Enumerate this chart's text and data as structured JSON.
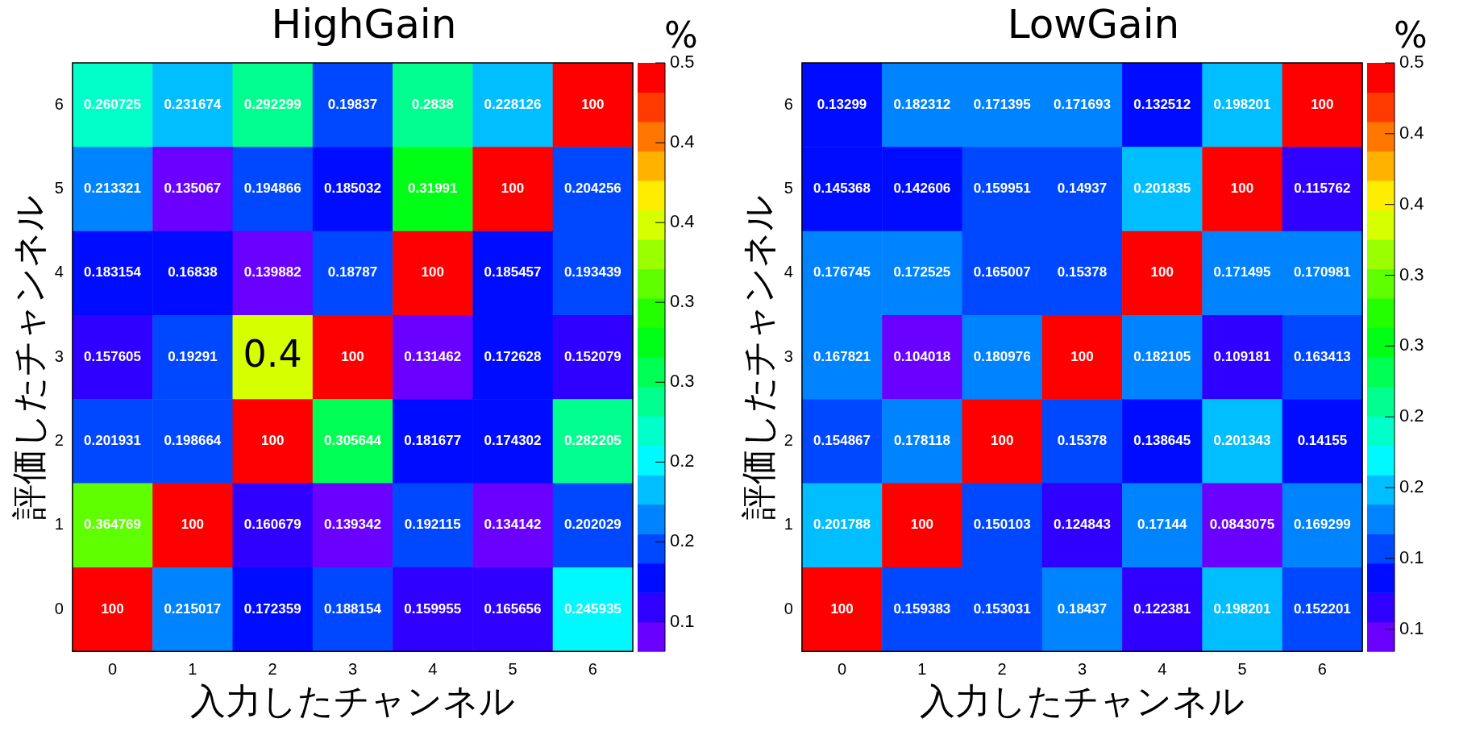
{
  "chart_data": [
    {
      "type": "heatmap",
      "title": "HighGain",
      "xlabel": "入力したチャンネル",
      "ylabel": "評価したチャンネル",
      "clabel": "%",
      "categories": [
        "0",
        "1",
        "2",
        "3",
        "4",
        "5",
        "6"
      ],
      "y_categories": [
        "6",
        "5",
        "4",
        "3",
        "2",
        "1",
        "0"
      ],
      "cells": [
        [
          0.260725,
          0.231674,
          0.292299,
          0.19837,
          0.2838,
          0.228126,
          100
        ],
        [
          0.213321,
          0.135067,
          0.194866,
          0.185032,
          0.31991,
          100,
          0.204256
        ],
        [
          0.183154,
          0.16838,
          0.139882,
          0.18787,
          100,
          0.185457,
          0.193439
        ],
        [
          0.157605,
          0.19291,
          0.39,
          100,
          0.131462,
          0.172628,
          0.152079
        ],
        [
          0.201931,
          0.198664,
          100,
          0.305644,
          0.181677,
          0.174302,
          0.282205
        ],
        [
          0.364769,
          100,
          0.160679,
          0.139342,
          0.192115,
          0.134142,
          0.202029
        ],
        [
          100,
          0.215017,
          0.172359,
          0.188154,
          0.159955,
          0.165656,
          0.245935
        ]
      ],
      "cell_labels": [
        [
          "0.260725",
          "0.231674",
          "0.292299",
          "0.19837",
          "0.2838",
          "0.228126",
          "100"
        ],
        [
          "0.213321",
          "0.135067",
          "0.194866",
          "0.185032",
          "0.31991",
          "100",
          "0.204256"
        ],
        [
          "0.183154",
          "0.16838",
          "0.139882",
          "0.18787",
          "100",
          "0.185457",
          "0.193439"
        ],
        [
          "0.157605",
          "0.19291",
          null,
          "100",
          "0.131462",
          "0.172628",
          "0.152079"
        ],
        [
          "0.201931",
          "0.198664",
          "100",
          "0.305644",
          "0.181677",
          "0.174302",
          "0.282205"
        ],
        [
          "0.364769",
          "100",
          "0.160679",
          "0.139342",
          "0.192115",
          "0.134142",
          "0.202029"
        ],
        [
          "100",
          "0.215017",
          "0.172359",
          "0.188154",
          "0.159955",
          "0.165656",
          "0.245935"
        ]
      ],
      "annotations": [
        "0.4"
      ],
      "clim": [
        0.131462,
        0.5
      ],
      "cticks": [
        0.5,
        {
          "value": 0.45,
          "label": "0.4"
        },
        0.4,
        {
          "value": 0.35,
          "label": "0.3"
        },
        0.3,
        {
          "value": 0.25,
          "label": "0.2"
        },
        0.2,
        {
          "value": 0.15,
          "label": "0.1"
        }
      ]
    },
    {
      "type": "heatmap",
      "title": "LowGain",
      "xlabel": "入力したチャンネル",
      "ylabel": "評価したチャンネル",
      "clabel": "%",
      "categories": [
        "0",
        "1",
        "2",
        "3",
        "4",
        "5",
        "6"
      ],
      "y_categories": [
        "6",
        "5",
        "4",
        "3",
        "2",
        "1",
        "0"
      ],
      "cells": [
        [
          0.13299,
          0.182312,
          0.171395,
          0.171693,
          0.132512,
          0.198201,
          100
        ],
        [
          0.145368,
          0.142606,
          0.159951,
          0.14937,
          0.201835,
          100,
          0.115762
        ],
        [
          0.176745,
          0.172525,
          0.165007,
          0.15378,
          100,
          0.171495,
          0.170981
        ],
        [
          0.167821,
          0.104018,
          0.180976,
          100,
          0.182105,
          0.109181,
          0.163413
        ],
        [
          0.154867,
          0.178118,
          100,
          0.15378,
          0.138645,
          0.201343,
          0.14155
        ],
        [
          0.201788,
          100,
          0.150103,
          0.124843,
          0.17144,
          0.0843075,
          0.169299
        ],
        [
          100,
          0.159383,
          0.153031,
          0.18437,
          0.122381,
          0.198201,
          0.152201
        ]
      ],
      "data_labels": true,
      "clim": [
        0.0843075,
        0.5
      ],
      "cticks": [
        0.5,
        {
          "value": 0.45,
          "label": "0.4"
        },
        0.4,
        {
          "value": 0.35,
          "label": "0.3"
        },
        0.3,
        {
          "value": 0.25,
          "label": "0.2"
        },
        0.2,
        {
          "value": 0.15,
          "label": "0.1"
        },
        {
          "value": 0.1,
          "label": "0.1"
        }
      ]
    }
  ]
}
